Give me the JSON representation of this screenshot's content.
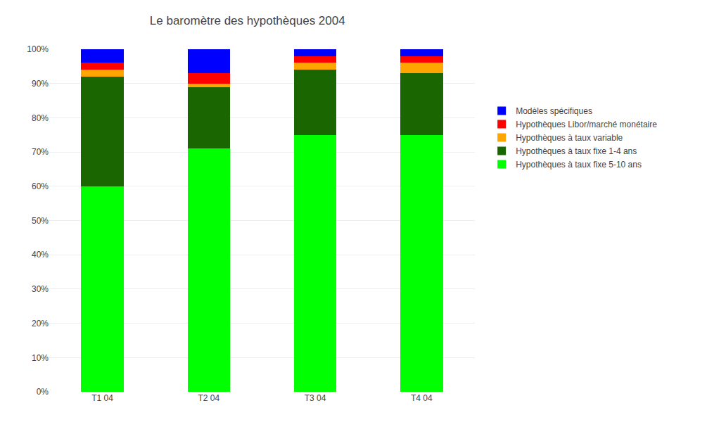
{
  "chart_data": {
    "type": "bar",
    "stacked": true,
    "title": "Le baromètre des hypothèques 2004",
    "categories": [
      "T1 04",
      "T2 04",
      "T3 04",
      "T4 04"
    ],
    "series": [
      {
        "name": "Hypothèques à taux fixe 5-10 ans",
        "color": "#00FF00",
        "values": [
          60,
          71,
          75,
          75
        ]
      },
      {
        "name": "Hypothèques à taux fixe 1-4 ans",
        "color": "#1A6600",
        "values": [
          32,
          18,
          19,
          18
        ]
      },
      {
        "name": "Hypothèques à taux variable",
        "color": "#FFA500",
        "values": [
          2,
          1,
          2,
          3
        ]
      },
      {
        "name": "Hypothèques Libor/marché monétaire",
        "color": "#FF0000",
        "values": [
          2,
          3,
          2,
          2
        ]
      },
      {
        "name": "Modèles spécifiques",
        "color": "#0000FF",
        "values": [
          4,
          7,
          2,
          2
        ]
      }
    ],
    "ylim": [
      0,
      100
    ],
    "yticks": [
      {
        "value": 0,
        "label": "0%"
      },
      {
        "value": 10,
        "label": "10%"
      },
      {
        "value": 20,
        "label": "20%"
      },
      {
        "value": 30,
        "label": "30%"
      },
      {
        "value": 40,
        "label": "40%"
      },
      {
        "value": 50,
        "label": "50%"
      },
      {
        "value": 60,
        "label": "60%"
      },
      {
        "value": 70,
        "label": "70%"
      },
      {
        "value": 80,
        "label": "80%"
      },
      {
        "value": 90,
        "label": "90%"
      },
      {
        "value": 100,
        "label": "100%"
      }
    ],
    "grid": true,
    "legend": "right"
  }
}
